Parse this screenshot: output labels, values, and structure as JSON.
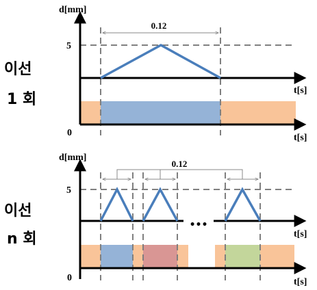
{
  "top_panel": {
    "y_axis_label": "d[mm]",
    "x_axis_label_upper": "t[s]",
    "x_axis_label_lower": "t[s]",
    "level_label": "5",
    "origin_label": "0",
    "span_label": "0.12",
    "side_label_line1": "이선",
    "side_label_line2": "1 회"
  },
  "bottom_panel": {
    "y_axis_label": "d[mm]",
    "x_axis_label_upper": "t[s]",
    "x_axis_label_lower": "t[s]",
    "level_label": "5",
    "origin_label": "0",
    "span_label": "0.12",
    "ellipsis": "•••",
    "side_label_line1": "이선",
    "side_label_line2": "n 회"
  },
  "colors": {
    "waveform": "#4a7ebb",
    "dashed": "#7f7f7f",
    "background_band": "#f9c499",
    "band_blue": "#95b3d7",
    "band_red": "#d99694",
    "band_green": "#c3d69b"
  }
}
